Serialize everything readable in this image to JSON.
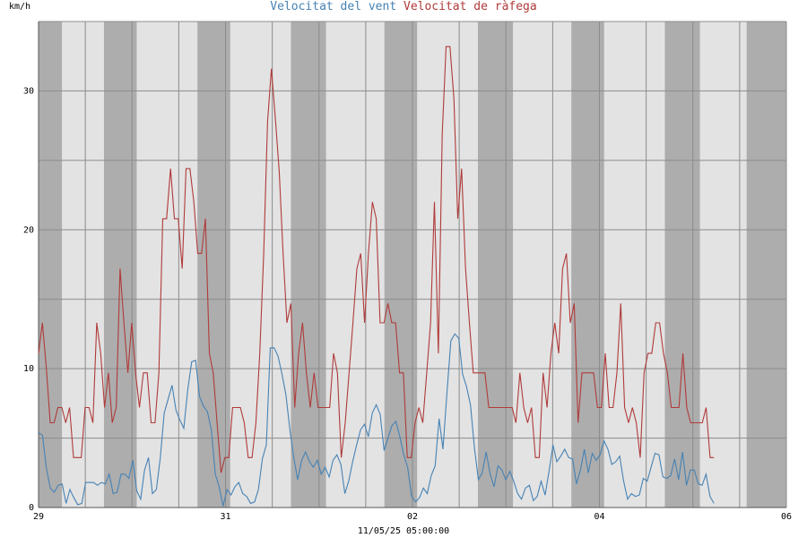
{
  "chart_data": {
    "type": "line",
    "title_parts": [
      "Velocitat del vent",
      "Velocitat de ràfega"
    ],
    "ylabel": "km/h",
    "ylim": [
      0,
      35
    ],
    "yticks": [
      0,
      10,
      20,
      30
    ],
    "xlim": [
      0,
      32
    ],
    "xticks": [
      {
        "x": 0,
        "label": "29"
      },
      {
        "x": 8,
        "label": "31"
      },
      {
        "x": 16,
        "label": "02"
      },
      {
        "x": 24,
        "label": "04"
      },
      {
        "x": 32,
        "label": "06"
      }
    ],
    "footer": "11/05/25 05:00:00",
    "grid": true,
    "colors": {
      "wind": "#4682b4",
      "gust": "#b03a3a"
    },
    "series": [
      {
        "name": "Velocitat del vent",
        "color": "#4682b4",
        "values": [
          5.4,
          5.2,
          2.8,
          1.4,
          1.1,
          1.6,
          1.7,
          0.3,
          1.3,
          0.7,
          0.2,
          0.3,
          1.8,
          1.8,
          1.8,
          1.6,
          1.8,
          1.7,
          2.4,
          1.0,
          1.1,
          2.4,
          2.4,
          2.1,
          3.4,
          1.2,
          0.6,
          2.7,
          3.6,
          1.0,
          1.3,
          3.6,
          6.8,
          7.8,
          8.8,
          7.0,
          6.3,
          5.7,
          8.5,
          10.5,
          10.6,
          8.0,
          7.3,
          6.9,
          5.6,
          2.4,
          1.5,
          0.1,
          1.3,
          0.9,
          1.5,
          1.8,
          1.0,
          0.8,
          0.3,
          0.4,
          1.3,
          3.5,
          4.5,
          11.5,
          11.5,
          10.9,
          9.6,
          8.1,
          5.6,
          3.6,
          2.0,
          3.4,
          4.0,
          3.3,
          2.9,
          3.4,
          2.4,
          2.9,
          2.2,
          3.4,
          3.8,
          3.1,
          1.0,
          1.9,
          3.3,
          4.5,
          5.6,
          6.0,
          5.1,
          6.8,
          7.4,
          6.7,
          4.1,
          5.0,
          5.9,
          6.2,
          5.1,
          3.8,
          2.9,
          0.8,
          0.4,
          0.7,
          1.4,
          1.0,
          2.3,
          3.0,
          6.4,
          4.2,
          8.2,
          12.0,
          12.5,
          12.2,
          9.6,
          8.7,
          7.4,
          4.3,
          2.0,
          2.5,
          4.0,
          2.4,
          1.5,
          3.0,
          2.7,
          2.0,
          2.6,
          1.9,
          1.0,
          0.6,
          1.4,
          1.6,
          0.5,
          0.8,
          1.9,
          0.9,
          2.6,
          4.5,
          3.3,
          3.7,
          4.2,
          3.6,
          3.5,
          1.7,
          2.7,
          4.2,
          2.5,
          3.9,
          3.4,
          3.8,
          4.8,
          4.2,
          3.1,
          3.3,
          3.7,
          1.9,
          0.6,
          1.0,
          0.8,
          0.9,
          2.1,
          1.9,
          2.9,
          3.9,
          3.8,
          2.2,
          2.1,
          2.3,
          3.5,
          2.0,
          4.0,
          1.6,
          2.7,
          2.7,
          1.7,
          1.6,
          2.4,
          0.8,
          0.3
        ]
      },
      {
        "name": "Velocitat de ràfega",
        "color": "#b03a3a",
        "values": [
          11.1,
          13.3,
          10.0,
          6.1,
          6.1,
          7.2,
          7.2,
          6.1,
          7.2,
          3.6,
          3.6,
          3.6,
          7.2,
          7.2,
          6.1,
          13.3,
          11.1,
          7.2,
          9.7,
          6.1,
          7.2,
          17.2,
          13.3,
          9.7,
          13.3,
          9.7,
          7.2,
          9.7,
          9.7,
          6.1,
          6.1,
          9.7,
          20.8,
          20.8,
          24.4,
          20.8,
          20.8,
          17.2,
          24.4,
          24.4,
          22.0,
          18.3,
          18.3,
          20.8,
          11.1,
          9.7,
          6.1,
          2.5,
          3.6,
          3.6,
          7.2,
          7.2,
          7.2,
          6.1,
          3.6,
          3.6,
          6.1,
          11.1,
          18.3,
          27.8,
          31.6,
          28.0,
          24.2,
          18.3,
          13.3,
          14.7,
          7.2,
          11.1,
          13.3,
          9.7,
          7.2,
          9.7,
          7.2,
          7.2,
          7.2,
          7.2,
          11.1,
          9.7,
          3.6,
          6.1,
          9.7,
          13.3,
          17.2,
          18.3,
          13.3,
          18.3,
          22.0,
          20.8,
          13.3,
          13.3,
          14.7,
          13.3,
          13.3,
          9.7,
          9.7,
          3.6,
          3.6,
          6.1,
          7.2,
          6.1,
          9.7,
          13.3,
          22.0,
          11.1,
          26.9,
          33.2,
          33.2,
          29.5,
          20.8,
          24.4,
          17.2,
          13.3,
          9.7,
          9.7,
          9.7,
          9.7,
          7.2,
          7.2,
          7.2,
          7.2,
          7.2,
          7.2,
          7.2,
          6.1,
          9.7,
          7.2,
          6.1,
          7.2,
          3.6,
          3.6,
          9.7,
          7.2,
          11.1,
          13.3,
          11.1,
          17.2,
          18.3,
          13.3,
          14.7,
          6.1,
          9.7,
          9.7,
          9.7,
          9.7,
          7.2,
          7.2,
          11.1,
          7.2,
          7.2,
          9.7,
          14.7,
          7.2,
          6.1,
          7.2,
          6.1,
          3.6,
          9.7,
          11.1,
          11.1,
          13.3,
          13.3,
          11.1,
          9.7,
          7.2,
          7.2,
          7.2,
          11.1,
          7.2,
          6.1,
          6.1,
          6.1,
          6.1,
          7.2,
          3.6,
          3.6
        ]
      }
    ]
  }
}
